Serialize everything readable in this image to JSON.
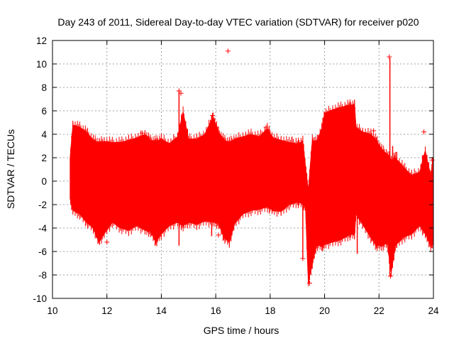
{
  "chart_data": {
    "type": "scatter",
    "title": "Day 243 of 2011, Sidereal Day-to-day VTEC variation (SDTVAR) for receiver p020",
    "xlabel": "GPS time / hours",
    "ylabel": "SDTVAR / TECUs",
    "xlim": [
      10,
      24
    ],
    "ylim": [
      -10,
      12
    ],
    "xticks": [
      10,
      12,
      14,
      16,
      18,
      20,
      22,
      24
    ],
    "yticks": [
      -10,
      -8,
      -6,
      -4,
      -2,
      0,
      2,
      4,
      6,
      8,
      10,
      12
    ],
    "grid": true,
    "legend": "none",
    "marker": "+",
    "color": "#ff0000",
    "series": [
      {
        "name": "SDTVAR p020",
        "envelope": [
          {
            "x": 10.65,
            "min": -1.5,
            "max": 2.0
          },
          {
            "x": 10.75,
            "min": -2.5,
            "max": 4.8
          },
          {
            "x": 11.0,
            "min": -2.8,
            "max": 4.6
          },
          {
            "x": 11.25,
            "min": -3.5,
            "max": 4.2
          },
          {
            "x": 11.5,
            "min": -4.0,
            "max": 3.5
          },
          {
            "x": 11.7,
            "min": -5.2,
            "max": 3.3
          },
          {
            "x": 11.9,
            "min": -4.5,
            "max": 3.4
          },
          {
            "x": 12.2,
            "min": -3.5,
            "max": 3.3
          },
          {
            "x": 12.5,
            "min": -4.0,
            "max": 3.3
          },
          {
            "x": 12.8,
            "min": -4.2,
            "max": 3.5
          },
          {
            "x": 13.1,
            "min": -3.8,
            "max": 3.7
          },
          {
            "x": 13.4,
            "min": -4.2,
            "max": 4.0
          },
          {
            "x": 13.6,
            "min": -4.3,
            "max": 3.5
          },
          {
            "x": 13.8,
            "min": -5.2,
            "max": 3.4
          },
          {
            "x": 14.0,
            "min": -4.5,
            "max": 3.6
          },
          {
            "x": 14.3,
            "min": -3.8,
            "max": 3.2
          },
          {
            "x": 14.6,
            "min": -3.5,
            "max": 3.8
          },
          {
            "x": 14.8,
            "min": -3.8,
            "max": 5.9
          },
          {
            "x": 15.0,
            "min": -3.5,
            "max": 3.6
          },
          {
            "x": 15.3,
            "min": -3.7,
            "max": 3.6
          },
          {
            "x": 15.6,
            "min": -3.4,
            "max": 4.0
          },
          {
            "x": 15.9,
            "min": -3.5,
            "max": 5.5
          },
          {
            "x": 16.1,
            "min": -3.6,
            "max": 4.2
          },
          {
            "x": 16.3,
            "min": -4.8,
            "max": 3.5
          },
          {
            "x": 16.5,
            "min": -5.2,
            "max": 3.3
          },
          {
            "x": 16.7,
            "min": -3.6,
            "max": 3.6
          },
          {
            "x": 17.0,
            "min": -2.8,
            "max": 3.8
          },
          {
            "x": 17.3,
            "min": -2.5,
            "max": 4.0
          },
          {
            "x": 17.6,
            "min": -2.4,
            "max": 3.8
          },
          {
            "x": 17.9,
            "min": -2.2,
            "max": 4.5
          },
          {
            "x": 18.1,
            "min": -2.5,
            "max": 3.7
          },
          {
            "x": 18.4,
            "min": -2.6,
            "max": 3.5
          },
          {
            "x": 18.7,
            "min": -2.0,
            "max": 3.3
          },
          {
            "x": 19.0,
            "min": -1.8,
            "max": 3.2
          },
          {
            "x": 19.2,
            "min": -1.9,
            "max": 3.4
          },
          {
            "x": 19.3,
            "min": -2.2,
            "max": 1.2
          },
          {
            "x": 19.4,
            "min": -8.6,
            "max": -0.8
          },
          {
            "x": 19.55,
            "min": -7.0,
            "max": 3.5
          },
          {
            "x": 19.7,
            "min": -5.5,
            "max": 3.3
          },
          {
            "x": 19.9,
            "min": -5.5,
            "max": 4.5
          },
          {
            "x": 20.0,
            "min": -5.4,
            "max": 5.8
          },
          {
            "x": 20.3,
            "min": -5.2,
            "max": 6.1
          },
          {
            "x": 20.6,
            "min": -5.0,
            "max": 6.3
          },
          {
            "x": 20.9,
            "min": -4.6,
            "max": 6.5
          },
          {
            "x": 21.1,
            "min": -4.5,
            "max": 6.5
          },
          {
            "x": 21.15,
            "min": -2.8,
            "max": 4.6
          },
          {
            "x": 21.4,
            "min": -3.7,
            "max": 4.2
          },
          {
            "x": 21.7,
            "min": -4.8,
            "max": 4.0
          },
          {
            "x": 21.9,
            "min": -5.5,
            "max": 3.5
          },
          {
            "x": 22.1,
            "min": -5.5,
            "max": 2.7
          },
          {
            "x": 22.3,
            "min": -5.3,
            "max": 2.3
          },
          {
            "x": 22.45,
            "min": -7.8,
            "max": 1.8
          },
          {
            "x": 22.6,
            "min": -5.5,
            "max": 2.0
          },
          {
            "x": 22.9,
            "min": -4.8,
            "max": 1.2
          },
          {
            "x": 23.2,
            "min": -4.5,
            "max": 0.5
          },
          {
            "x": 23.5,
            "min": -3.8,
            "max": 0.8
          },
          {
            "x": 23.7,
            "min": -4.5,
            "max": 2.6
          },
          {
            "x": 23.9,
            "min": -5.5,
            "max": 0.4
          },
          {
            "x": 23.98,
            "min": -5.2,
            "max": 1.8
          }
        ],
        "spikes": [
          {
            "x": 14.65,
            "min": -5.5,
            "max": 7.7
          },
          {
            "x": 15.85,
            "min": -4.7,
            "max": 5.6
          },
          {
            "x": 16.3,
            "min": -4.5,
            "max": 1.0
          },
          {
            "x": 18.8,
            "min": -2.0,
            "max": 3.8
          },
          {
            "x": 19.2,
            "min": -6.6,
            "max": -1.5
          },
          {
            "x": 19.42,
            "min": -8.7,
            "max": -3.0
          },
          {
            "x": 21.2,
            "min": -6.2,
            "max": 1.0
          },
          {
            "x": 22.4,
            "min": -8.1,
            "max": 10.5
          },
          {
            "x": 22.5,
            "min": -6.5,
            "max": 3.0
          },
          {
            "x": 22.65,
            "min": -5.7,
            "max": 2.5
          },
          {
            "x": 23.6,
            "min": -3.0,
            "max": 2.2
          }
        ],
        "points": [
          {
            "x": 16.45,
            "y": 11.1
          },
          {
            "x": 23.65,
            "y": 4.2
          },
          {
            "x": 22.38,
            "y": 10.6
          },
          {
            "x": 14.65,
            "y": 7.7
          },
          {
            "x": 19.45,
            "y": -8.7
          },
          {
            "x": 19.2,
            "y": -6.6
          },
          {
            "x": 22.42,
            "y": -8.1
          },
          {
            "x": 14.72,
            "y": 7.5
          },
          {
            "x": 15.88,
            "y": 5.6
          },
          {
            "x": 16.1,
            "y": -4.6
          },
          {
            "x": 17.85,
            "y": 4.6
          },
          {
            "x": 13.3,
            "y": 4.1
          },
          {
            "x": 21.8,
            "y": 4.3
          },
          {
            "x": 12.0,
            "y": -5.2
          },
          {
            "x": 23.95,
            "y": 1.8
          }
        ]
      }
    ]
  }
}
